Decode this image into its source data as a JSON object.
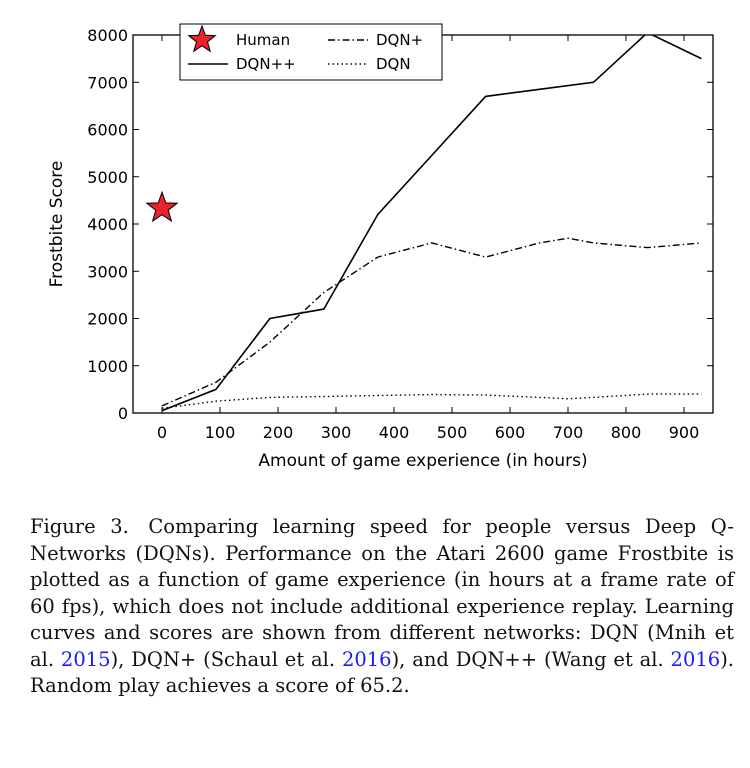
{
  "chart_data": {
    "type": "line",
    "title": "",
    "xlabel": "Amount of game experience (in hours)",
    "ylabel": "Frostbite Score",
    "xlim": [
      -50,
      950
    ],
    "ylim": [
      0,
      8000
    ],
    "xticks": [
      "0",
      "100",
      "200",
      "300",
      "400",
      "500",
      "600",
      "700",
      "800",
      "900"
    ],
    "yticks": [
      "0",
      "1000",
      "2000",
      "3000",
      "4000",
      "5000",
      "6000",
      "7000",
      "8000"
    ],
    "legend_position": "top-left",
    "series": [
      {
        "name": "DQN++",
        "style": "solid",
        "color": "#000000",
        "x": [
          0,
          93,
          186,
          279,
          372,
          465,
          558,
          651,
          744,
          837,
          930
        ],
        "y": [
          50,
          500,
          2000,
          2200,
          4200,
          5450,
          6700,
          6850,
          7000,
          8050,
          7500
        ]
      },
      {
        "name": "DQN+",
        "style": "dashdot",
        "color": "#000000",
        "x": [
          0,
          93,
          186,
          279,
          372,
          465,
          558,
          651,
          700,
          744,
          837,
          930
        ],
        "y": [
          150,
          650,
          1500,
          2550,
          3300,
          3600,
          3300,
          3600,
          3700,
          3600,
          3500,
          3600
        ]
      },
      {
        "name": "DQN",
        "style": "dotted",
        "color": "#000000",
        "x": [
          0,
          93,
          186,
          279,
          372,
          465,
          558,
          651,
          700,
          744,
          837,
          930
        ],
        "y": [
          100,
          250,
          330,
          350,
          370,
          390,
          380,
          330,
          300,
          330,
          400,
          400
        ]
      },
      {
        "name": "Human",
        "style": "star",
        "color": "#e8232a",
        "x": [
          0
        ],
        "y": [
          4335
        ]
      }
    ]
  },
  "caption": {
    "lead": "Figure 3. Comparing learning speed for people versus Deep Q-Networks (DQNs). Performance on the Atari 2600 game Frostbite is plotted as a function of game experience (in hours at a frame rate of 60 fps), which does not include additional experience replay. Learning curves and scores are shown from different networks: DQN (Mnih et al. ",
    "cite1": "2015",
    "mid1": "), DQN+ (Schaul et al. ",
    "cite2": "2016",
    "mid2": "), and DQN++ (Wang et al. ",
    "cite3": "2016",
    "tail": "). Random play achieves a score of 65.2."
  }
}
